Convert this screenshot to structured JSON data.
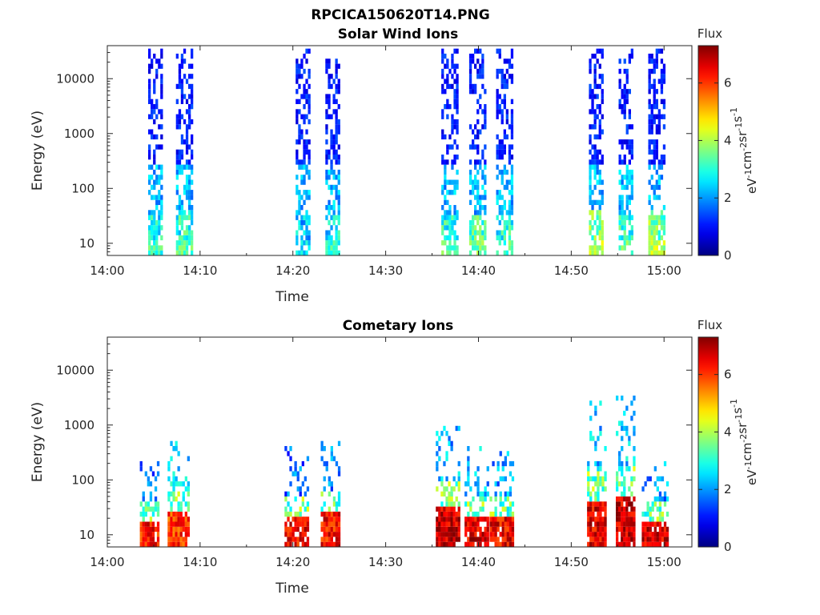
{
  "figure_title": "RPCICA150620T14.PNG",
  "chart_data": [
    {
      "type": "heatmap",
      "title": "Solar Wind Ions",
      "xlabel": "Time",
      "ylabel": "Energy (eV)",
      "x_ticks": [
        "14:00",
        "14:10",
        "14:20",
        "14:30",
        "14:40",
        "14:50",
        "15:00"
      ],
      "x_range_min": [
        0,
        63
      ],
      "y_scale": "log",
      "y_ticks": [
        "10",
        "100",
        "1000",
        "10000"
      ],
      "y_range_ev": [
        6,
        40000
      ],
      "colorbar": {
        "label": "Flux",
        "unit_sup": [
          "eV",
          "-1",
          "cm",
          "-2",
          "sr",
          "-1",
          "s",
          "-1"
        ],
        "ticks": [
          "0",
          "2",
          "4",
          "6"
        ],
        "range": [
          0,
          7.3
        ]
      },
      "bursts": [
        {
          "t": 4.4,
          "t_end": 5.9,
          "e_top": 30000,
          "low_flux": 3.0,
          "high_flux": 0.9
        },
        {
          "t": 7.4,
          "t_end": 9.0,
          "e_top": 35000,
          "low_flux": 3.3,
          "high_flux": 0.9
        },
        {
          "t": 20.3,
          "t_end": 21.8,
          "e_top": 30000,
          "low_flux": 2.6,
          "high_flux": 0.9
        },
        {
          "t": 23.5,
          "t_end": 25.0,
          "e_top": 20000,
          "low_flux": 2.9,
          "high_flux": 0.9
        },
        {
          "t": 36.0,
          "t_end": 37.6,
          "e_top": 30000,
          "low_flux": 3.3,
          "high_flux": 0.9
        },
        {
          "t": 39.0,
          "t_end": 40.7,
          "e_top": 30000,
          "low_flux": 3.5,
          "high_flux": 0.9
        },
        {
          "t": 41.9,
          "t_end": 43.7,
          "e_top": 30000,
          "low_flux": 3.2,
          "high_flux": 0.9
        },
        {
          "t": 51.9,
          "t_end": 53.4,
          "e_top": 35000,
          "low_flux": 3.9,
          "high_flux": 0.9
        },
        {
          "t": 55.1,
          "t_end": 56.6,
          "e_top": 30000,
          "low_flux": 3.3,
          "high_flux": 0.9
        },
        {
          "t": 58.3,
          "t_end": 60.0,
          "e_top": 35000,
          "low_flux": 3.9,
          "high_flux": 0.9
        }
      ]
    },
    {
      "type": "heatmap",
      "title": "Cometary Ions",
      "xlabel": "Time",
      "ylabel": "Energy (eV)",
      "x_ticks": [
        "14:00",
        "14:10",
        "14:20",
        "14:30",
        "14:40",
        "14:50",
        "15:00"
      ],
      "x_range_min": [
        0,
        63
      ],
      "y_scale": "log",
      "y_ticks": [
        "10",
        "100",
        "1000",
        "10000"
      ],
      "y_range_ev": [
        6,
        40000
      ],
      "colorbar": {
        "label": "Flux",
        "unit_sup": [
          "eV",
          "-1",
          "cm",
          "-2",
          "sr",
          "-1",
          "s",
          "-1"
        ],
        "ticks": [
          "0",
          "2",
          "4",
          "6"
        ],
        "range": [
          0,
          7.3
        ]
      },
      "bursts": [
        {
          "t": 3.5,
          "t_end": 5.5,
          "e_top": 200,
          "low_flux": 6.4,
          "high_flux": 1.5
        },
        {
          "t": 6.5,
          "t_end": 8.8,
          "e_top": 600,
          "low_flux": 6.2,
          "high_flux": 2.4
        },
        {
          "t": 19.1,
          "t_end": 21.6,
          "e_top": 400,
          "low_flux": 6.6,
          "high_flux": 1.5
        },
        {
          "t": 23.0,
          "t_end": 25.0,
          "e_top": 500,
          "low_flux": 6.5,
          "high_flux": 1.6
        },
        {
          "t": 35.4,
          "t_end": 37.8,
          "e_top": 900,
          "low_flux": 6.9,
          "high_flux": 2.0
        },
        {
          "t": 38.5,
          "t_end": 40.9,
          "e_top": 400,
          "low_flux": 6.8,
          "high_flux": 2.1
        },
        {
          "t": 41.2,
          "t_end": 43.6,
          "e_top": 300,
          "low_flux": 6.6,
          "high_flux": 1.8
        },
        {
          "t": 51.7,
          "t_end": 53.6,
          "e_top": 2500,
          "low_flux": 6.7,
          "high_flux": 2.2
        },
        {
          "t": 54.8,
          "t_end": 56.7,
          "e_top": 3000,
          "low_flux": 6.9,
          "high_flux": 2.3
        },
        {
          "t": 57.6,
          "t_end": 60.4,
          "e_top": 200,
          "low_flux": 6.8,
          "high_flux": 1.8
        }
      ]
    }
  ]
}
